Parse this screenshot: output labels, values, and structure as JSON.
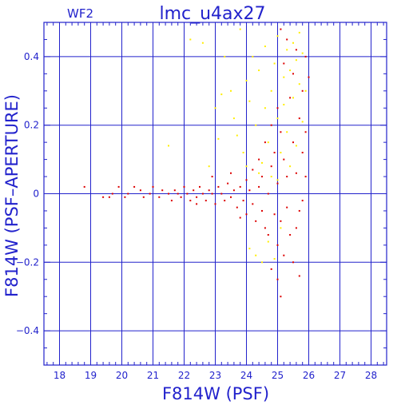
{
  "chart_data": {
    "type": "scatter",
    "title": "lmc_u4ax27",
    "subtitle": "WF2",
    "xlabel": "F814W (PSF)",
    "ylabel": "F814W (PSF–APERTURE)",
    "xlim": [
      17.5,
      28.5
    ],
    "ylim": [
      -0.5,
      0.5
    ],
    "x_ticks": [
      "18",
      "19",
      "20",
      "21",
      "22",
      "23",
      "24",
      "25",
      "26",
      "27",
      "28"
    ],
    "y_ticks": [
      "0.4",
      "0.2",
      "0",
      "−0.2",
      "−0.4"
    ],
    "y_tick_values": [
      0.4,
      0.2,
      0,
      -0.2,
      -0.4
    ],
    "grid": true,
    "colors": {
      "axis": "#2222cc",
      "series_red": "#dd0000",
      "series_yellow": "#ffee00"
    },
    "series": [
      {
        "color": "#ffee00",
        "points": [
          [
            21.5,
            0.14
          ],
          [
            22.2,
            0.45
          ],
          [
            22.6,
            0.44
          ],
          [
            22.8,
            0.08
          ],
          [
            23.0,
            0.25
          ],
          [
            23.1,
            0.16
          ],
          [
            23.2,
            0.29
          ],
          [
            23.3,
            0.4
          ],
          [
            23.5,
            0.3
          ],
          [
            23.6,
            0.22
          ],
          [
            23.8,
            0.48
          ],
          [
            23.9,
            0.12
          ],
          [
            24.0,
            0.33
          ],
          [
            24.1,
            0.27
          ],
          [
            24.1,
            -0.16
          ],
          [
            24.2,
            0.4
          ],
          [
            24.3,
            0.2
          ],
          [
            24.3,
            -0.18
          ],
          [
            24.4,
            0.36
          ],
          [
            24.5,
            0.09
          ],
          [
            24.5,
            -0.2
          ],
          [
            24.6,
            0.25
          ],
          [
            24.6,
            0.43
          ],
          [
            24.7,
            0.15
          ],
          [
            24.7,
            -0.14
          ],
          [
            24.8,
            0.3
          ],
          [
            24.8,
            0.05
          ],
          [
            24.9,
            0.38
          ],
          [
            24.9,
            -0.19
          ],
          [
            25.0,
            0.22
          ],
          [
            25.0,
            0.46
          ],
          [
            25.1,
            0.12
          ],
          [
            25.1,
            -0.1
          ],
          [
            25.2,
            0.34
          ],
          [
            25.2,
            0.26
          ],
          [
            25.3,
            0.42
          ],
          [
            25.3,
            0.18
          ],
          [
            25.4,
            0.08
          ],
          [
            25.4,
            0.36
          ],
          [
            25.5,
            0.28
          ],
          [
            25.5,
            0.44
          ],
          [
            25.6,
            0.14
          ],
          [
            25.6,
            0.39
          ],
          [
            25.7,
            0.32
          ],
          [
            25.7,
            0.47
          ],
          [
            25.8,
            0.21
          ],
          [
            25.8,
            0.41
          ],
          [
            25.9,
            0.3
          ],
          [
            24.0,
            0.08
          ],
          [
            23.7,
            0.17
          ],
          [
            24.4,
            0.06
          ],
          [
            25.0,
            0.04
          ]
        ]
      },
      {
        "color": "#dd0000",
        "points": [
          [
            18.8,
            0.02
          ],
          [
            19.4,
            -0.01
          ],
          [
            19.6,
            -0.01
          ],
          [
            19.7,
            0.0
          ],
          [
            19.9,
            0.02
          ],
          [
            20.1,
            -0.01
          ],
          [
            20.2,
            0.0
          ],
          [
            20.4,
            0.02
          ],
          [
            20.6,
            0.01
          ],
          [
            20.7,
            -0.01
          ],
          [
            20.9,
            0.0
          ],
          [
            21.0,
            0.02
          ],
          [
            21.2,
            -0.01
          ],
          [
            21.3,
            0.01
          ],
          [
            21.5,
            0.0
          ],
          [
            21.6,
            -0.02
          ],
          [
            21.7,
            0.01
          ],
          [
            21.8,
            0.0
          ],
          [
            21.9,
            -0.01
          ],
          [
            22.0,
            0.02
          ],
          [
            22.1,
            0.0
          ],
          [
            22.2,
            -0.02
          ],
          [
            22.3,
            0.01
          ],
          [
            22.4,
            -0.01
          ],
          [
            22.5,
            0.02
          ],
          [
            22.6,
            0.0
          ],
          [
            22.7,
            -0.02
          ],
          [
            22.8,
            0.01
          ],
          [
            22.9,
            0.0
          ],
          [
            23.0,
            -0.03
          ],
          [
            23.1,
            0.02
          ],
          [
            23.2,
            0.0
          ],
          [
            23.3,
            -0.02
          ],
          [
            23.4,
            0.03
          ],
          [
            23.5,
            -0.01
          ],
          [
            23.6,
            0.01
          ],
          [
            23.7,
            -0.04
          ],
          [
            23.8,
            0.02
          ],
          [
            23.9,
            -0.02
          ],
          [
            24.0,
            0.04
          ],
          [
            24.0,
            -0.06
          ],
          [
            24.1,
            0.01
          ],
          [
            24.2,
            -0.03
          ],
          [
            24.2,
            0.07
          ],
          [
            24.3,
            -0.08
          ],
          [
            24.4,
            0.02
          ],
          [
            24.4,
            0.1
          ],
          [
            24.5,
            -0.05
          ],
          [
            24.5,
            0.05
          ],
          [
            24.6,
            -0.1
          ],
          [
            24.6,
            0.15
          ],
          [
            24.7,
            0.0
          ],
          [
            24.7,
            -0.12
          ],
          [
            24.8,
            0.08
          ],
          [
            24.8,
            0.2
          ],
          [
            24.9,
            -0.06
          ],
          [
            24.9,
            0.12
          ],
          [
            25.0,
            -0.15
          ],
          [
            25.0,
            0.03
          ],
          [
            25.0,
            0.25
          ],
          [
            25.0,
            -0.25
          ],
          [
            25.1,
            0.18
          ],
          [
            25.1,
            -0.08
          ],
          [
            25.1,
            -0.3
          ],
          [
            25.2,
            0.1
          ],
          [
            25.2,
            0.38
          ],
          [
            25.2,
            -0.18
          ],
          [
            25.3,
            0.05
          ],
          [
            25.3,
            -0.04
          ],
          [
            25.4,
            0.28
          ],
          [
            25.4,
            -0.12
          ],
          [
            25.5,
            0.15
          ],
          [
            25.5,
            -0.2
          ],
          [
            25.5,
            0.35
          ],
          [
            25.6,
            0.06
          ],
          [
            25.6,
            -0.1
          ],
          [
            25.6,
            0.42
          ],
          [
            25.7,
            0.22
          ],
          [
            25.7,
            -0.05
          ],
          [
            25.7,
            -0.24
          ],
          [
            25.8,
            0.3
          ],
          [
            25.8,
            0.12
          ],
          [
            25.8,
            -0.02
          ],
          [
            25.9,
            0.4
          ],
          [
            25.9,
            0.18
          ],
          [
            25.9,
            0.05
          ],
          [
            26.0,
            0.34
          ],
          [
            25.3,
            0.45
          ],
          [
            25.1,
            0.48
          ],
          [
            24.8,
            -0.22
          ],
          [
            23.8,
            -0.07
          ],
          [
            23.5,
            0.06
          ],
          [
            22.9,
            0.05
          ],
          [
            22.4,
            -0.03
          ]
        ]
      }
    ]
  }
}
